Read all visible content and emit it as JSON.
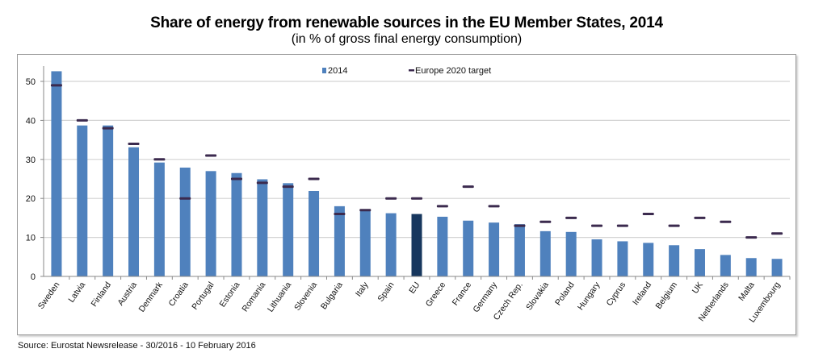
{
  "chart_data": {
    "type": "bar",
    "title": "Share of energy from renewable sources in the EU Member States, 2014",
    "subtitle": "(in % of gross final energy consumption)",
    "xlabel": "",
    "ylabel": "",
    "ylim": [
      0,
      55
    ],
    "yticks": [
      0,
      10,
      20,
      30,
      40,
      50
    ],
    "grid": true,
    "legend_position": "top-center",
    "categories": [
      "Sweden",
      "Latvia",
      "Finland",
      "Austria",
      "Denmark",
      "Croatia",
      "Portugal",
      "Estonia",
      "Romania",
      "Lithuania",
      "Slovenia",
      "Bulgaria",
      "Italy",
      "Spain",
      "EU",
      "Greece",
      "France",
      "Germany",
      "Czech Rep.",
      "Slovakia",
      "Poland",
      "Hungary",
      "Cyprus",
      "Ireland",
      "Belgium",
      "UK",
      "Netherlands",
      "Malta",
      "Luxembourg"
    ],
    "series": [
      {
        "name": "2014",
        "kind": "bar",
        "color": "#4f81bd",
        "highlight": {
          "category": "EU",
          "color": "#17375e"
        },
        "values": [
          52.6,
          38.7,
          38.7,
          33.1,
          29.2,
          27.9,
          27.0,
          26.5,
          24.9,
          23.9,
          21.9,
          18.0,
          17.1,
          16.2,
          16.0,
          15.3,
          14.3,
          13.8,
          13.4,
          11.6,
          11.4,
          9.5,
          9.0,
          8.6,
          8.0,
          7.0,
          5.5,
          4.7,
          4.5
        ]
      },
      {
        "name": "Europe 2020 target",
        "kind": "marker",
        "color": "#3b2a4e",
        "values": [
          49,
          40,
          38,
          34,
          30,
          20,
          31,
          25,
          24,
          23,
          25,
          16,
          17,
          20,
          20,
          18,
          23,
          18,
          13,
          14,
          15,
          13,
          13,
          16,
          13,
          15,
          14,
          10,
          11
        ]
      }
    ]
  },
  "source": "Source: Eurostat Newsrelease - 30/2016 - 10 February 2016"
}
